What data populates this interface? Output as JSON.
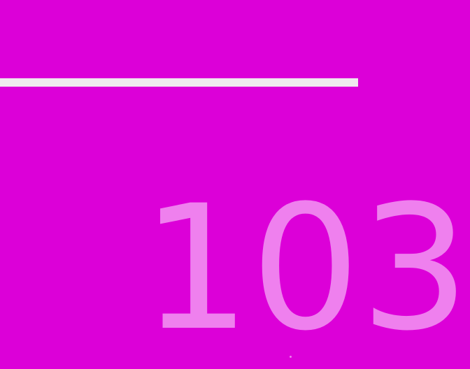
{
  "display": {
    "value": "103"
  },
  "colors": {
    "background": "#dc00d8",
    "divider": "#efeaee",
    "value_text": "#ef80ee"
  }
}
